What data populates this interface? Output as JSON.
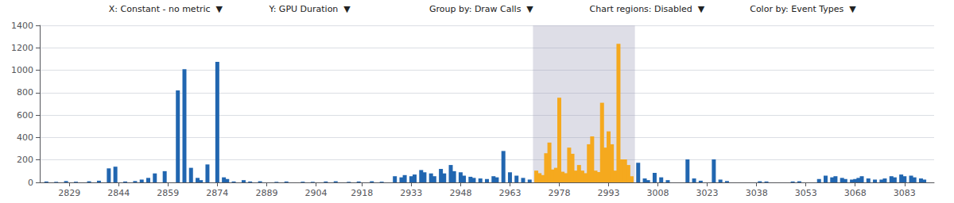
{
  "chart_data": {
    "type": "bar",
    "annotations": [
      "X: Constant - no metric  ▼",
      "Y: GPU Duration  ▼",
      "Group by: Draw Calls  ▼",
      "Chart regions: Disabled  ▼",
      "Color by: Event Types  ▼"
    ],
    "xlim": [
      2820,
      3092
    ],
    "xticks": [
      2829,
      2844,
      2859,
      2874,
      2889,
      2904,
      2918,
      2933,
      2948,
      2963,
      2978,
      2993,
      3008,
      3023,
      3038,
      3053,
      3068,
      3083
    ],
    "ylim": [
      0,
      1400
    ],
    "yticks": [
      0,
      200,
      400,
      600,
      800,
      1000,
      1200,
      1400
    ],
    "grid": true,
    "highlight": [
      2970,
      3001
    ],
    "series": [
      {
        "color": "#2166b0",
        "x": [
          2822,
          2825,
          2828,
          2831,
          2835,
          2838,
          2841,
          2843,
          2846,
          2849,
          2851,
          2853,
          2855,
          2858,
          2862,
          2864,
          2866,
          2868,
          2869,
          2871,
          2874,
          2876,
          2877,
          2879,
          2882,
          2884,
          2887,
          2892,
          2895,
          2900,
          2903,
          2907,
          2910,
          2914,
          2917,
          2921,
          2924,
          2928,
          2930,
          2931,
          2933,
          2934,
          2936,
          2937,
          2939,
          2940,
          2942,
          2943,
          2945,
          2946,
          2948,
          2949,
          2951,
          2952,
          2954,
          2956,
          2958,
          2959,
          2961,
          2963,
          2965,
          2967,
          2969,
          3002,
          3004,
          3005,
          3007,
          3009,
          3011,
          3017,
          3019,
          3021,
          3025,
          3027,
          3029,
          3039,
          3041,
          3049,
          3051,
          3057,
          3059,
          3061,
          3062,
          3064,
          3065,
          3067,
          3068,
          3069,
          3070,
          3072,
          3074,
          3076,
          3077,
          3079,
          3080,
          3082,
          3083,
          3085,
          3086,
          3088,
          3089
        ],
        "values": [
          8,
          5,
          12,
          6,
          10,
          15,
          125,
          140,
          8,
          12,
          25,
          40,
          80,
          100,
          820,
          1010,
          130,
          40,
          20,
          160,
          1075,
          45,
          30,
          8,
          20,
          8,
          10,
          5,
          8,
          6,
          5,
          8,
          10,
          5,
          8,
          10,
          6,
          55,
          45,
          65,
          55,
          70,
          110,
          90,
          80,
          55,
          120,
          80,
          155,
          100,
          90,
          60,
          50,
          40,
          35,
          30,
          55,
          45,
          280,
          90,
          60,
          40,
          25,
          175,
          35,
          20,
          85,
          45,
          20,
          205,
          35,
          15,
          205,
          25,
          12,
          10,
          8,
          8,
          10,
          30,
          60,
          45,
          55,
          40,
          30,
          25,
          30,
          40,
          55,
          35,
          25,
          25,
          35,
          55,
          45,
          70,
          55,
          60,
          45,
          35,
          25
        ]
      },
      {
        "color": "#f5a91e",
        "x": [
          2971,
          2972,
          2973,
          2974,
          2975,
          2976,
          2977,
          2978,
          2979,
          2980,
          2981,
          2982,
          2983,
          2984,
          2985,
          2986,
          2987,
          2988,
          2989,
          2990,
          2991,
          2992,
          2993,
          2994,
          2995,
          2996,
          2997,
          2998,
          2999,
          3000
        ],
        "values": [
          105,
          82,
          65,
          260,
          355,
          115,
          130,
          755,
          95,
          82,
          310,
          255,
          105,
          155,
          105,
          82,
          340,
          410,
          105,
          92,
          710,
          310,
          455,
          340,
          105,
          1235,
          205,
          205,
          155,
          55
        ]
      }
    ]
  }
}
